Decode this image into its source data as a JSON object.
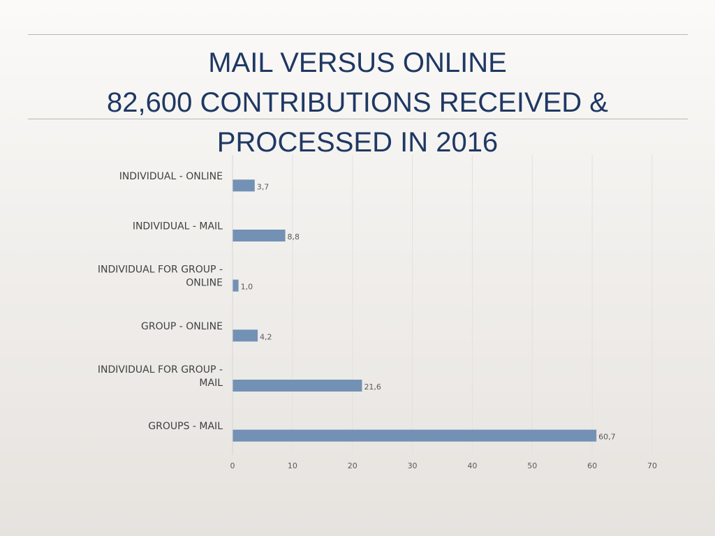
{
  "slide": {
    "title_lines": [
      "MAIL VERSUS ONLINE",
      "82,600 CONTRIBUTIONS RECEIVED &",
      "PROCESSED IN 2016"
    ],
    "title_color": "#1f3864"
  },
  "chart_data": {
    "type": "bar",
    "orientation": "horizontal",
    "title": "",
    "xlabel": "",
    "ylabel": "",
    "categories": [
      "INDIVIDUAL - ONLINE",
      "INDIVIDUAL - MAIL",
      "INDIVIDUAL FOR GROUP - ONLINE",
      "GROUP - ONLINE",
      "INDIVIDUAL FOR GROUP - MAIL",
      "GROUPS - MAIL"
    ],
    "values": [
      3.7,
      8.8,
      1.0,
      4.2,
      21.6,
      60.7
    ],
    "data_labels": [
      "3,7",
      "8,8",
      "1,0",
      "4,2",
      "21,6",
      "60,7"
    ],
    "xlim": [
      0,
      70
    ],
    "x_ticks": [
      0,
      10,
      20,
      30,
      40,
      50,
      60,
      70
    ],
    "grid": true,
    "legend": "none",
    "bar_color": "#7391b5",
    "grid_color": "#e3e1dd"
  }
}
